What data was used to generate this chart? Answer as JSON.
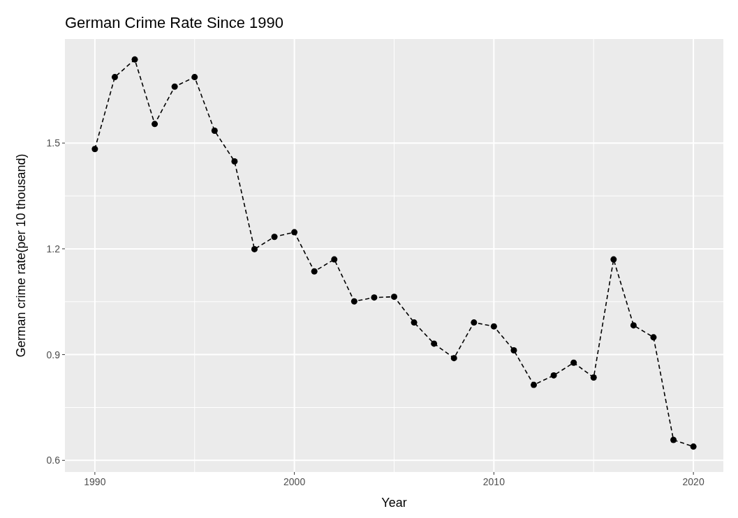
{
  "chart_data": {
    "type": "line",
    "title": "German Crime Rate Since 1990",
    "xlabel": "Year",
    "ylabel": "German crime rate(per 10 thousand)",
    "x": [
      1990,
      1991,
      1992,
      1993,
      1994,
      1995,
      1996,
      1997,
      1998,
      1999,
      2000,
      2001,
      2002,
      2003,
      2004,
      2005,
      2006,
      2007,
      2008,
      2009,
      2010,
      2011,
      2012,
      2013,
      2014,
      2015,
      2016,
      2017,
      2018,
      2019,
      2020
    ],
    "series": [
      {
        "color": "#000000",
        "values": [
          1.483,
          1.687,
          1.737,
          1.554,
          1.66,
          1.687,
          1.535,
          1.448,
          1.199,
          1.234,
          1.247,
          1.136,
          1.17,
          1.051,
          1.062,
          1.064,
          0.991,
          0.931,
          0.89,
          0.991,
          0.98,
          0.912,
          0.814,
          0.841,
          0.877,
          0.835,
          1.17,
          0.983,
          0.949,
          0.658,
          0.639
        ]
      }
    ],
    "xlim": [
      1988.5,
      2021.5
    ],
    "xticks": [
      1990,
      2000,
      2010,
      2020
    ],
    "ylim": [
      0.567,
      1.795
    ],
    "yticks": [
      {
        "value": 0.6,
        "label": "0.6"
      },
      {
        "value": 0.9,
        "label": "0.9"
      },
      {
        "value": 1.2,
        "label": "1.2"
      },
      {
        "value": 1.5,
        "label": "1.5"
      }
    ],
    "grid": true,
    "marker": "circle",
    "line_style": "dashed"
  }
}
